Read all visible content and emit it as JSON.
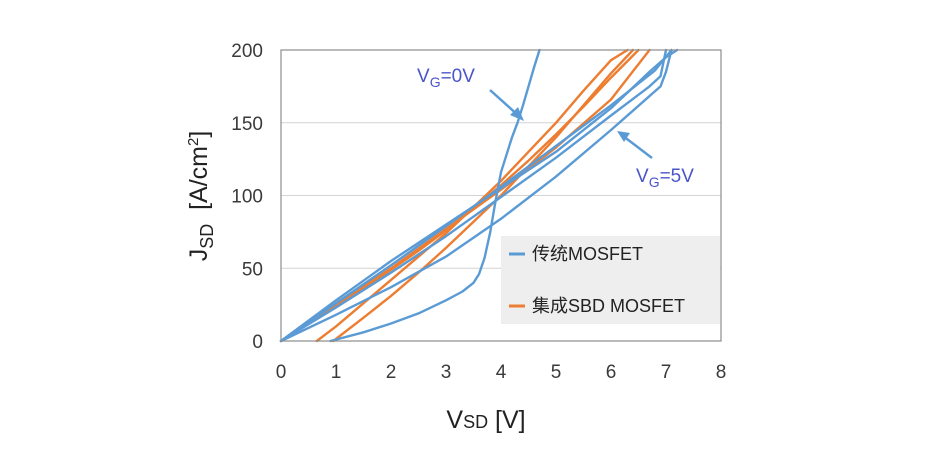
{
  "chart_data": {
    "type": "line",
    "title": "",
    "xlabel": {
      "main": "V",
      "sub": "SD",
      "unit": " [V]"
    },
    "ylabel": {
      "main": "J",
      "sub": "SD",
      "unit": "  [A/cm",
      "sup": "2",
      "close": "]"
    },
    "xlim": [
      0,
      8
    ],
    "ylim": [
      0,
      200
    ],
    "xticks": [
      "0",
      "1",
      "2",
      "3",
      "4",
      "5",
      "6",
      "7",
      "8"
    ],
    "yticks": [
      "0",
      "50",
      "100",
      "150",
      "200"
    ],
    "grid": true,
    "colors": {
      "conventional": "#5b9bd5",
      "integrated": "#ed7d31",
      "annotation": "#4a55c8"
    },
    "legend": {
      "placement": "lower-right",
      "entries": [
        "传统MOSFET",
        "集成SBD MOSFET"
      ]
    },
    "annotations": [
      {
        "main": "V",
        "sub": "G",
        "rest": "=0V",
        "points_to": [
          4.35,
          155
        ]
      },
      {
        "main": "V",
        "sub": "G",
        "rest": "=5V",
        "points_to": [
          6.2,
          145
        ]
      }
    ],
    "series": [
      {
        "name": "传统MOSFET",
        "group": "conventional",
        "label": "VG=0V",
        "x": [
          0.9,
          1.5,
          2.0,
          2.5,
          3.0,
          3.3,
          3.5,
          3.6,
          3.7,
          3.8,
          3.9,
          4.0,
          4.1,
          4.2,
          4.3,
          4.4,
          4.5,
          4.6,
          4.7
        ],
        "y": [
          0,
          6,
          12,
          19,
          28,
          34,
          40,
          46,
          57,
          74,
          96,
          116,
          128,
          140,
          150,
          162,
          175,
          188,
          200
        ]
      },
      {
        "name": "传统MOSFET",
        "group": "conventional",
        "x": [
          0,
          1,
          2,
          3,
          4,
          5,
          6,
          6.7,
          7.0,
          7.2
        ],
        "y": [
          0,
          28,
          55,
          80,
          105,
          130,
          160,
          185,
          195,
          200
        ]
      },
      {
        "name": "传统MOSFET",
        "group": "conventional",
        "x": [
          0,
          1,
          2,
          3,
          4,
          5,
          6,
          6.8,
          7.1
        ],
        "y": [
          0,
          26,
          52,
          79,
          106,
          134,
          162,
          186,
          200
        ]
      },
      {
        "name": "传统MOSFET",
        "group": "conventional",
        "x": [
          0,
          1,
          2,
          3,
          4,
          5,
          6,
          6.7,
          6.9,
          7.0
        ],
        "y": [
          0,
          23,
          47,
          72,
          99,
          126,
          155,
          175,
          182,
          200
        ]
      },
      {
        "name": "传统MOSFET",
        "group": "conventional",
        "label": "VG=5V",
        "x": [
          0,
          1,
          2,
          3,
          4,
          5,
          6,
          6.9,
          7.0,
          7.1
        ],
        "y": [
          0,
          18,
          37,
          58,
          84,
          113,
          145,
          175,
          185,
          200
        ]
      },
      {
        "name": "集成SBD MOSFET",
        "group": "integrated",
        "x": [
          0.65,
          1,
          1.5,
          2,
          2.5,
          3,
          3.5,
          4,
          4.5,
          5,
          5.5,
          6,
          6.3
        ],
        "y": [
          0,
          10,
          26,
          42,
          58,
          74,
          92,
          110,
          130,
          150,
          172,
          193,
          200
        ]
      },
      {
        "name": "集成SBD MOSFET",
        "group": "integrated",
        "x": [
          0.95,
          1.5,
          2,
          2.5,
          3,
          3.5,
          4,
          4.5,
          5,
          5.5,
          6,
          6.4
        ],
        "y": [
          0,
          16,
          31,
          47,
          64,
          82,
          100,
          120,
          140,
          162,
          184,
          200
        ]
      },
      {
        "name": "集成SBD MOSFET",
        "group": "integrated",
        "x": [
          0,
          0.5,
          1,
          1.5,
          2,
          2.5,
          3,
          3.5,
          4,
          4.5,
          5,
          5.5,
          6,
          6.5
        ],
        "y": [
          0,
          12,
          24,
          36,
          49,
          62,
          76,
          91,
          107,
          124,
          142,
          161,
          181,
          200
        ]
      },
      {
        "name": "集成SBD MOSFET",
        "group": "integrated",
        "x": [
          0,
          1,
          2,
          3,
          4,
          5,
          6,
          6.7
        ],
        "y": [
          0,
          25,
          50,
          77,
          104,
          133,
          166,
          200
        ]
      }
    ]
  }
}
